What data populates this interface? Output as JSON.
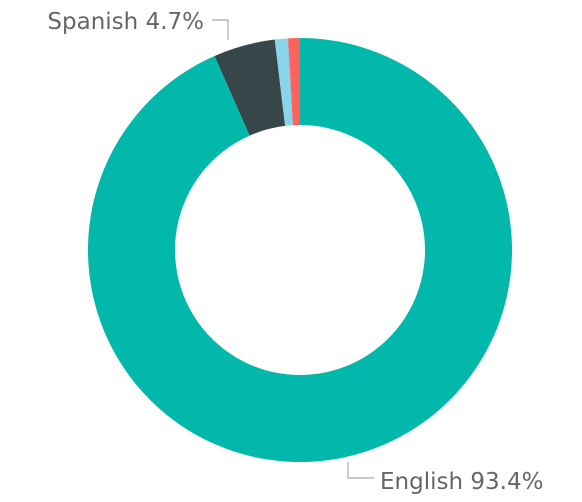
{
  "chart_data": {
    "type": "donut",
    "categories": [
      "English",
      "Spanish",
      null,
      null
    ],
    "values": [
      93.4,
      4.7,
      1.0,
      0.9
    ],
    "value_labels": [
      "93.4%",
      "4.7%",
      null,
      null
    ],
    "colors": [
      "#01b8aa",
      "#374649",
      "#8ad4eb",
      "#fd625e"
    ]
  }
}
